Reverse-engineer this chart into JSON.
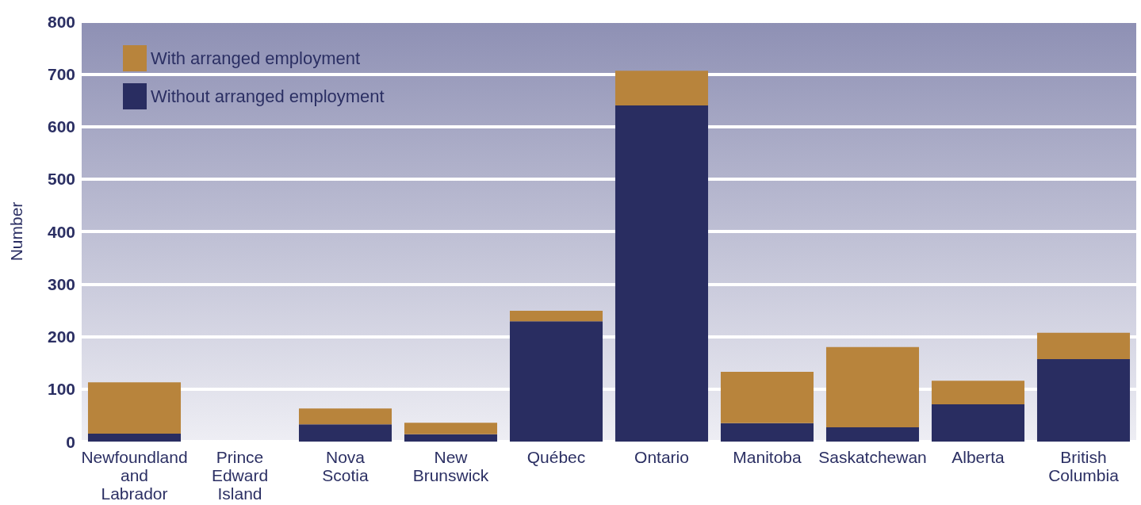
{
  "chart_data": {
    "type": "bar",
    "stacked": true,
    "ylabel": "Number",
    "categories": [
      "Newfoundland and Labrador",
      "Prince Edward Island",
      "Nova Scotia",
      "New Brunswick",
      "Québec",
      "Ontario",
      "Manitoba",
      "Saskatchewan",
      "Alberta",
      "British Columbia"
    ],
    "series": [
      {
        "name": "Without arranged employment",
        "color": "#292d61",
        "values": [
          15,
          0,
          33,
          14,
          229,
          640,
          35,
          27,
          71,
          157
        ]
      },
      {
        "name": "With arranged employment",
        "color": "#b8843c",
        "values": [
          98,
          0,
          30,
          22,
          20,
          66,
          98,
          153,
          45,
          50
        ]
      }
    ],
    "ylim": [
      0,
      800
    ],
    "yticks": [
      0,
      100,
      200,
      300,
      400,
      500,
      600,
      700,
      800
    ],
    "grid": "y",
    "legend": "top left"
  }
}
